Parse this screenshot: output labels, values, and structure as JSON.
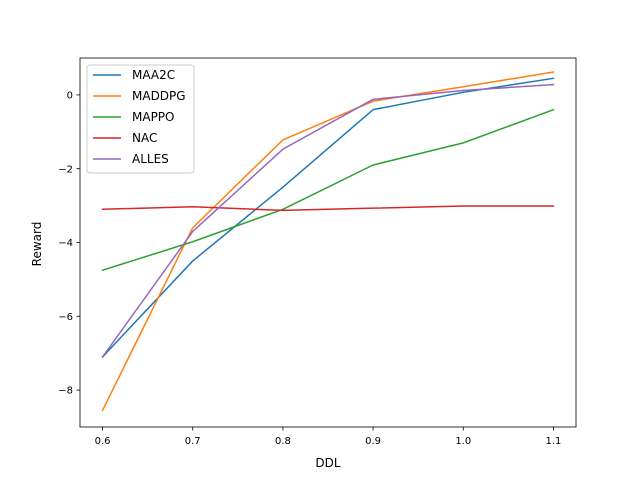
{
  "chart_data": {
    "type": "line",
    "title": "",
    "xlabel": "DDL",
    "ylabel": "Reward",
    "x": [
      0.6,
      0.7,
      0.8,
      0.9,
      1.0,
      1.1
    ],
    "xlim": [
      0.575,
      1.125
    ],
    "ylim": [
      -9.0,
      1.0
    ],
    "xticks": [
      0.6,
      0.7,
      0.8,
      0.9,
      1.0,
      1.1
    ],
    "xtick_labels": [
      "0.6",
      "0.7",
      "0.8",
      "0.9",
      "1.0",
      "1.1"
    ],
    "yticks": [
      -8,
      -6,
      -4,
      -2,
      0
    ],
    "ytick_labels": [
      "−8",
      "−6",
      "−4",
      "−2",
      "0"
    ],
    "grid": false,
    "legend_position": "top-left",
    "series": [
      {
        "name": "MAA2C",
        "color": "#1f77b4",
        "values": [
          -7.1,
          -4.5,
          -2.5,
          -0.4,
          0.07,
          0.45
        ]
      },
      {
        "name": "MADDPG",
        "color": "#ff7f0e",
        "values": [
          -8.55,
          -3.6,
          -1.22,
          -0.17,
          0.22,
          0.62
        ]
      },
      {
        "name": "MAPPO",
        "color": "#2ca02c",
        "values": [
          -4.75,
          -3.98,
          -3.1,
          -1.9,
          -1.3,
          -0.4
        ]
      },
      {
        "name": "NAC",
        "color": "#d62728",
        "values": [
          -3.1,
          -3.03,
          -3.13,
          -3.07,
          -3.01,
          -3.01
        ]
      },
      {
        "name": "ALLES",
        "color": "#9467bd",
        "values": [
          -7.1,
          -3.7,
          -1.47,
          -0.12,
          0.12,
          0.28
        ]
      }
    ]
  }
}
